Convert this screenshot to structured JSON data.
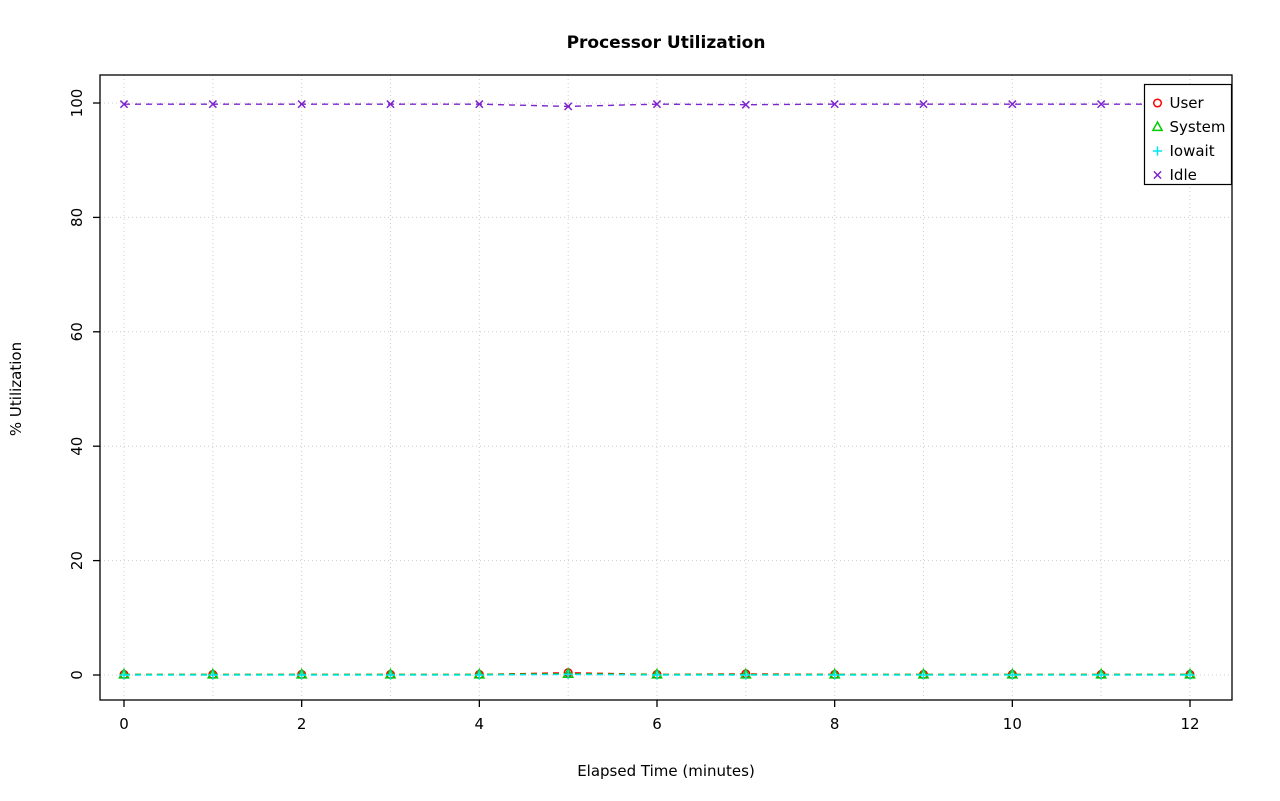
{
  "chart_data": {
    "type": "line",
    "title": "Processor Utilization",
    "xlabel": "Elapsed Time (minutes)",
    "ylabel": "% Utilization",
    "x": [
      0,
      1,
      2,
      3,
      4,
      5,
      6,
      7,
      8,
      9,
      10,
      11,
      12
    ],
    "xlim": [
      0,
      12
    ],
    "ylim": [
      0,
      100
    ],
    "x_ticks": [
      0,
      2,
      4,
      6,
      8,
      10,
      12
    ],
    "y_ticks": [
      0,
      20,
      40,
      60,
      80,
      100
    ],
    "grid": true,
    "grid_style": "dotted",
    "line_style": "dashed",
    "legend_position": "top-right",
    "series": [
      {
        "name": "User",
        "color": "#FF0000",
        "marker": "circle",
        "values": [
          0.1,
          0.1,
          0.1,
          0.1,
          0.1,
          0.4,
          0.1,
          0.2,
          0.1,
          0.1,
          0.1,
          0.1,
          0.1
        ]
      },
      {
        "name": "System",
        "color": "#00CD00",
        "marker": "triangle",
        "values": [
          0.1,
          0.1,
          0.1,
          0.1,
          0.1,
          0.2,
          0.1,
          0.1,
          0.1,
          0.1,
          0.1,
          0.1,
          0.1
        ]
      },
      {
        "name": "Iowait",
        "color": "#00E5EE",
        "marker": "plus",
        "values": [
          0,
          0,
          0,
          0,
          0,
          0.1,
          0,
          0,
          0,
          0,
          0,
          0,
          0
        ]
      },
      {
        "name": "Idle",
        "color": "#7D26CD",
        "marker": "x",
        "values": [
          99.8,
          99.8,
          99.8,
          99.8,
          99.8,
          99.4,
          99.8,
          99.7,
          99.8,
          99.8,
          99.8,
          99.8,
          99.8
        ]
      }
    ]
  },
  "colors": {
    "background": "#FFFFFF",
    "axis": "#000000",
    "grid": "#CCCCCC",
    "text": "#000000",
    "legend_fill": "#FFFFFF"
  }
}
